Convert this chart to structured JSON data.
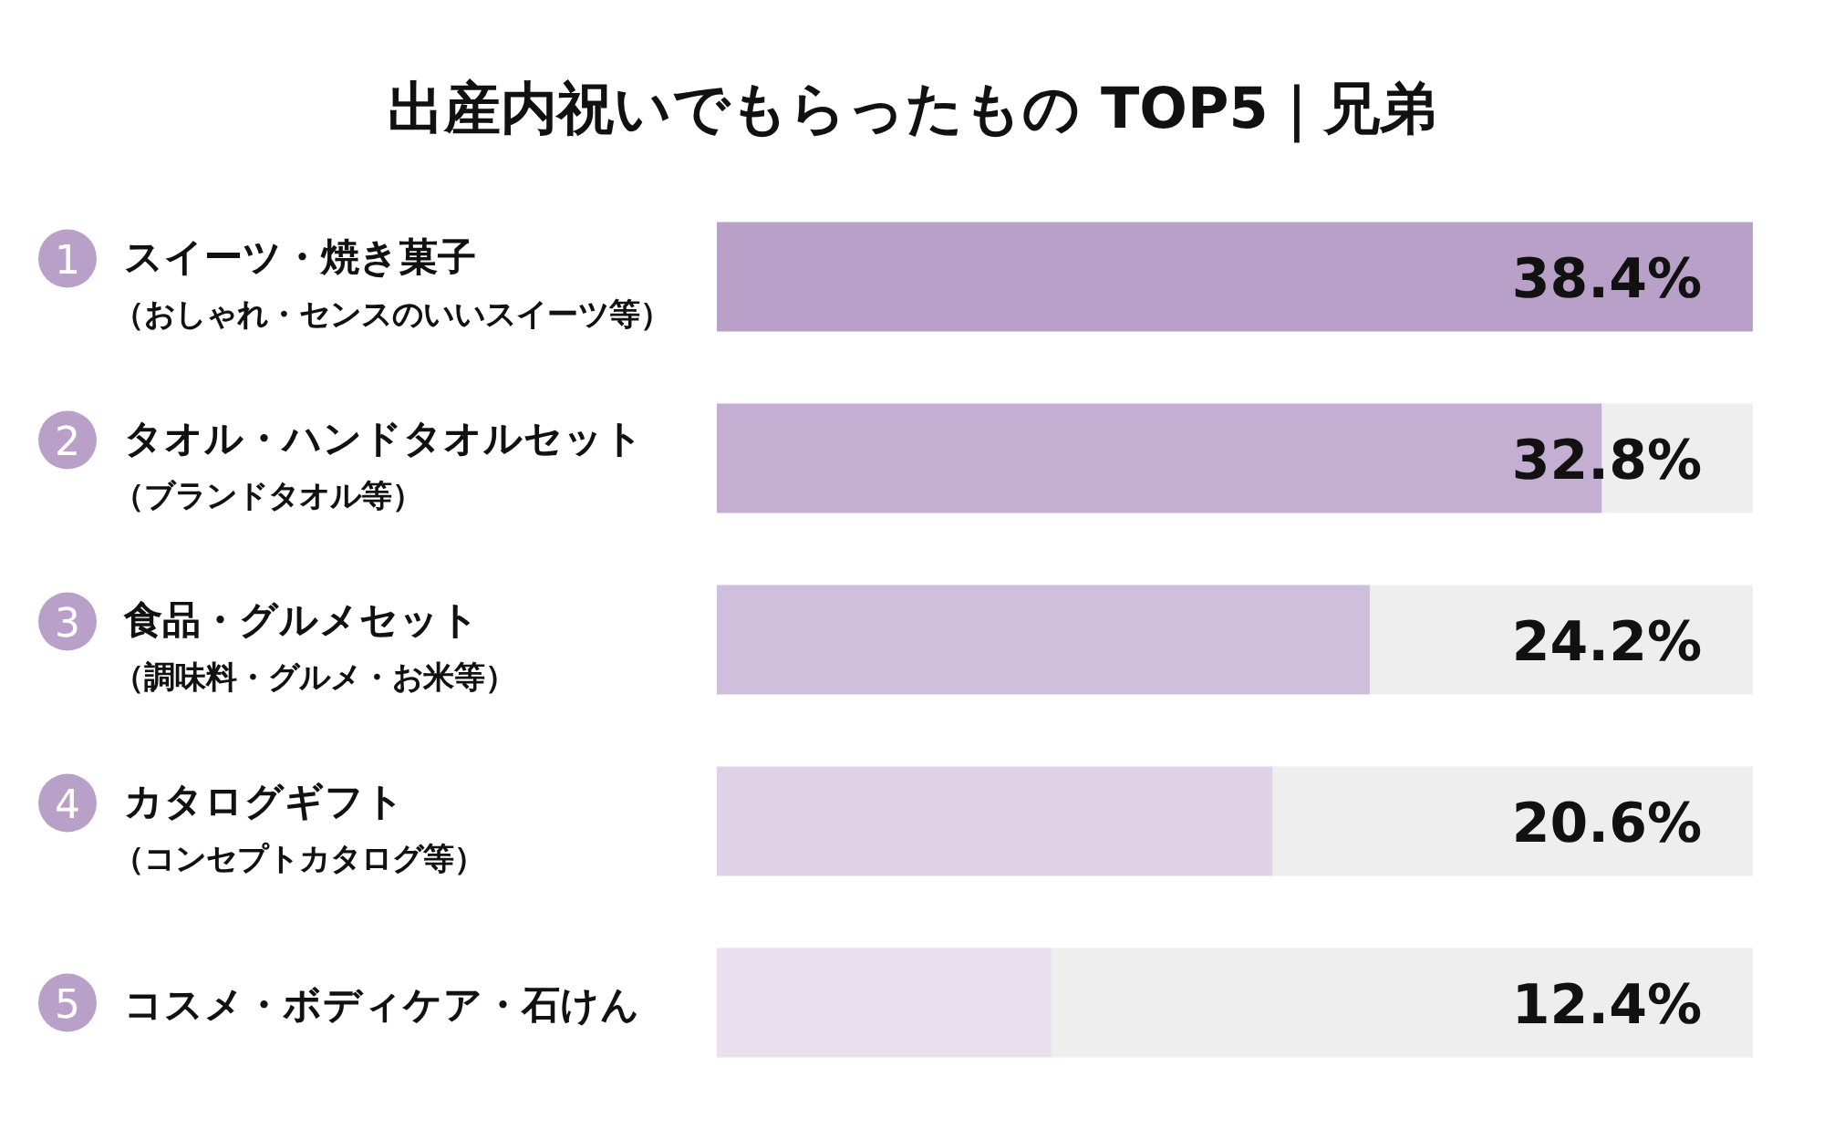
{
  "chart_data": {
    "type": "bar",
    "orientation": "horizontal",
    "title": "出産内祝いでもらったもの TOP5｜兄弟",
    "categories": [
      "スイーツ・焼き菓子（おしゃれ・センスのいいスイーツ等）",
      "タオル・ハンドタオルセット（ブランドタオル等）",
      "食品・グルメセット（調味料・グルメ・お米等）",
      "カタログギフト（コンセプトカタログ等）",
      "コスメ・ボディケア・石けん"
    ],
    "values": [
      38.4,
      32.8,
      24.2,
      20.6,
      12.4
    ],
    "colors": [
      "#b9a0c8",
      "#c4aed1",
      "#cfbfdc",
      "#dfd2e7",
      "#e9dfef"
    ],
    "value_labels": [
      "38.4%",
      "32.8%",
      "24.2%",
      "20.6%",
      "12.4%"
    ],
    "xlim": [
      0,
      38.4
    ],
    "tick_labels": "y",
    "annotations": [
      "1",
      "2",
      "3",
      "4",
      "5"
    ]
  }
}
